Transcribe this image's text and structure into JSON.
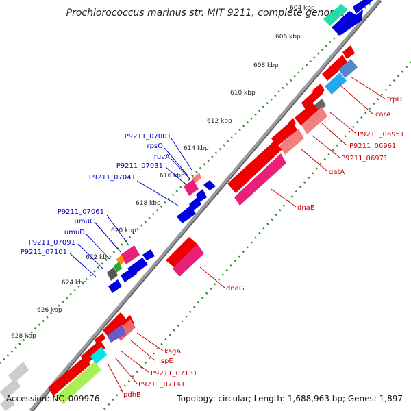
{
  "title": "Prochlorococcus marinus str. MIT 9211, complete genome",
  "footer": {
    "accession": "Accession: NC_009976",
    "topology": "Topology: circular; Length: 1,688,963 bp; Genes: 1,897"
  },
  "ticks": [
    "604 kbp",
    "606 kbp",
    "608 kbp",
    "610 kbp",
    "612 kbp",
    "614 kbp",
    "616 kbp",
    "618 kbp",
    "620 kbp",
    "622 kbp",
    "624 kbp",
    "626 kbp",
    "628 kbp"
  ],
  "gene_labels": [
    {
      "text": "trpD",
      "color": "#cc0000"
    },
    {
      "text": "carA",
      "color": "#cc0000"
    },
    {
      "text": "P9211_06951",
      "color": "#cc0000"
    },
    {
      "text": "P9211_06961",
      "color": "#cc0000"
    },
    {
      "text": "P9211_06971",
      "color": "#cc0000"
    },
    {
      "text": "gatA",
      "color": "#cc0000"
    },
    {
      "text": "dnaE",
      "color": "#cc0000"
    },
    {
      "text": "dnaG",
      "color": "#cc0000"
    },
    {
      "text": "ksgA",
      "color": "#cc0000"
    },
    {
      "text": "ispE",
      "color": "#cc0000"
    },
    {
      "text": "P9211_07131",
      "color": "#cc0000"
    },
    {
      "text": "P9211_07141",
      "color": "#cc0000"
    },
    {
      "text": "pdhB",
      "color": "#cc0000"
    },
    {
      "text": "P9211_07001",
      "color": "#0000cc"
    },
    {
      "text": "rpsO",
      "color": "#0000cc"
    },
    {
      "text": "ruvA",
      "color": "#0000cc"
    },
    {
      "text": "P9211_07031",
      "color": "#0000cc"
    },
    {
      "text": "P9211_07041",
      "color": "#0000cc"
    },
    {
      "text": "P9211_07061",
      "color": "#0000cc"
    },
    {
      "text": "umuC",
      "color": "#0000cc"
    },
    {
      "text": "umuD",
      "color": "#0000cc"
    },
    {
      "text": "P9211_07091",
      "color": "#0000cc"
    },
    {
      "text": "P9211_07101",
      "color": "#0000cc"
    }
  ],
  "colors": {
    "backbone": "#888888",
    "tick_dots": "#2e8b2e",
    "forward_gene": "#0000dd",
    "reverse_gene": "#ee0000",
    "rna_pink": "#e8207a"
  }
}
